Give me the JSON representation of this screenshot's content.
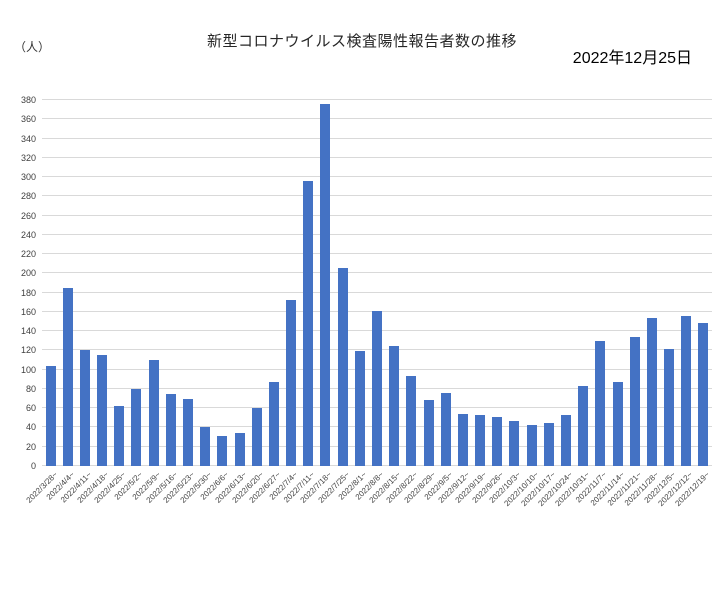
{
  "page": {
    "unit_label": "（人）",
    "title": "新型コロナウイルス検査陽性報告者数の推移",
    "date_label": "2022年12月25日"
  },
  "chart_data": {
    "type": "bar",
    "title": "新型コロナウイルス検査陽性報告者数の推移",
    "subtitle": "2022年12月25日",
    "xlabel": "",
    "ylabel": "（人）",
    "ylim": [
      0,
      380
    ],
    "ytick_step": 20,
    "grid": true,
    "legend": false,
    "bar_color": "#4472C4",
    "gridline_color": "#d9d9d9",
    "categories": [
      "2022/3/28~",
      "2022/4/4~",
      "2022/4/11~",
      "2022/4/18~",
      "2022/4/25~",
      "2022/5/2~",
      "2022/5/9~",
      "2022/5/16~",
      "2022/5/23~",
      "2022/5/30~",
      "2022/6/6~",
      "2022/6/13~",
      "2022/6/20~",
      "2022/6/27~",
      "2022/7/4~",
      "2022/7/11~",
      "2022/7/18~",
      "2022/7/25~",
      "2022/8/1~",
      "2022/8/8~",
      "2022/8/15~",
      "2022/8/22~",
      "2022/8/29~",
      "2022/9/5~",
      "2022/9/12~",
      "2022/9/19~",
      "2022/9/26~",
      "2022/10/3~",
      "2022/10/10~",
      "2022/10/17~",
      "2022/10/24~",
      "2022/10/31~",
      "2022/11/7~",
      "2022/11/14~",
      "2022/11/21~",
      "2022/11/28~",
      "2022/12/5~",
      "2022/12/12~",
      "2022/12/19~"
    ],
    "values": [
      104,
      185,
      120,
      115,
      62,
      80,
      110,
      75,
      70,
      41,
      31,
      34,
      60,
      87,
      172,
      296,
      376,
      206,
      119,
      161,
      125,
      93,
      69,
      76,
      54,
      53,
      51,
      47,
      43,
      45,
      53,
      83,
      130,
      87,
      134,
      154,
      122,
      156,
      149
    ]
  }
}
